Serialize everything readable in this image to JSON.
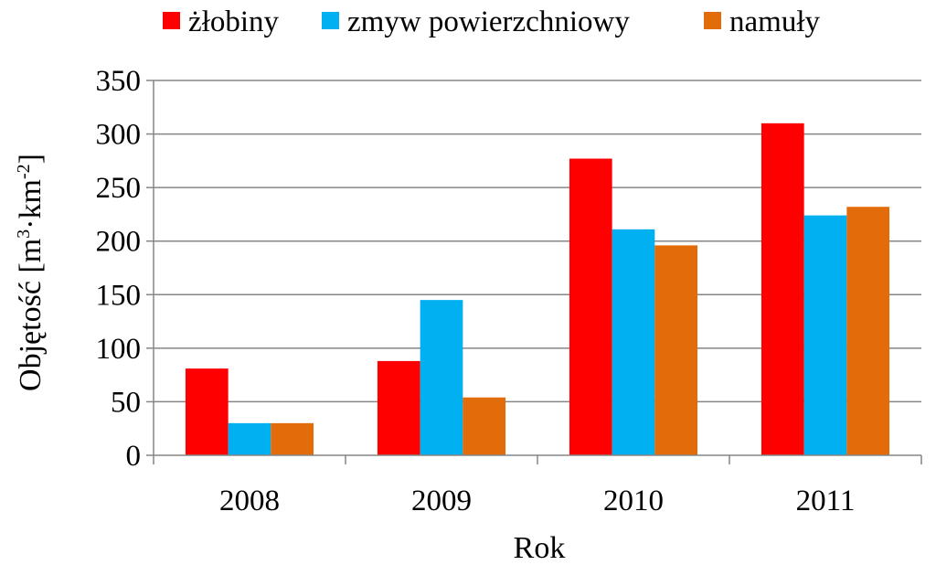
{
  "chart_data": {
    "type": "bar",
    "title": "",
    "categories": [
      "2008",
      "2009",
      "2010",
      "2011"
    ],
    "series": [
      {
        "name": "żłobiny",
        "color": "#ff0000",
        "values": [
          81,
          88,
          277,
          310
        ]
      },
      {
        "name": "zmyw powierzchniowy",
        "color": "#00b0f0",
        "values": [
          30,
          145,
          211,
          224
        ]
      },
      {
        "name": "namuły",
        "color": "#e26b0a",
        "values": [
          30,
          54,
          196,
          232
        ]
      }
    ],
    "xlabel": "Rok",
    "ylabel": {
      "base": "Objętość [m",
      "sup1": "3",
      "mid": "·km",
      "sup2": "-2",
      "end": "]"
    },
    "ylim": [
      0,
      350
    ],
    "yticks": [
      "0",
      "50",
      "100",
      "150",
      "200",
      "250",
      "300",
      "350"
    ],
    "grid": true,
    "legend_position": "top"
  }
}
